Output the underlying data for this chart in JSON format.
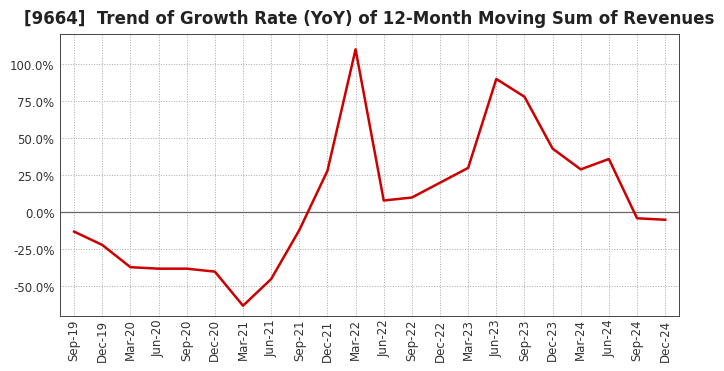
{
  "title": "[9664]  Trend of Growth Rate (YoY) of 12-Month Moving Sum of Revenues",
  "x_labels": [
    "Sep-19",
    "Dec-19",
    "Mar-20",
    "Jun-20",
    "Sep-20",
    "Dec-20",
    "Mar-21",
    "Jun-21",
    "Sep-21",
    "Dec-21",
    "Mar-22",
    "Jun-22",
    "Sep-22",
    "Dec-22",
    "Mar-23",
    "Jun-23",
    "Sep-23",
    "Dec-23",
    "Mar-24",
    "Jun-24",
    "Sep-24",
    "Dec-24"
  ],
  "y_values": [
    -0.13,
    -0.22,
    -0.37,
    -0.38,
    -0.38,
    -0.4,
    -0.63,
    -0.45,
    -0.12,
    0.28,
    1.1,
    0.08,
    0.1,
    0.2,
    0.3,
    0.9,
    0.78,
    0.43,
    0.29,
    0.36,
    -0.04,
    -0.05
  ],
  "line_color": "#cc0000",
  "background_color": "#ffffff",
  "grid_color": "#aaaaaa",
  "yticks": [
    -0.5,
    -0.25,
    0.0,
    0.25,
    0.5,
    0.75,
    1.0
  ],
  "ylim": [
    -0.7,
    1.2
  ],
  "title_fontsize": 12,
  "tick_fontsize": 8.5
}
